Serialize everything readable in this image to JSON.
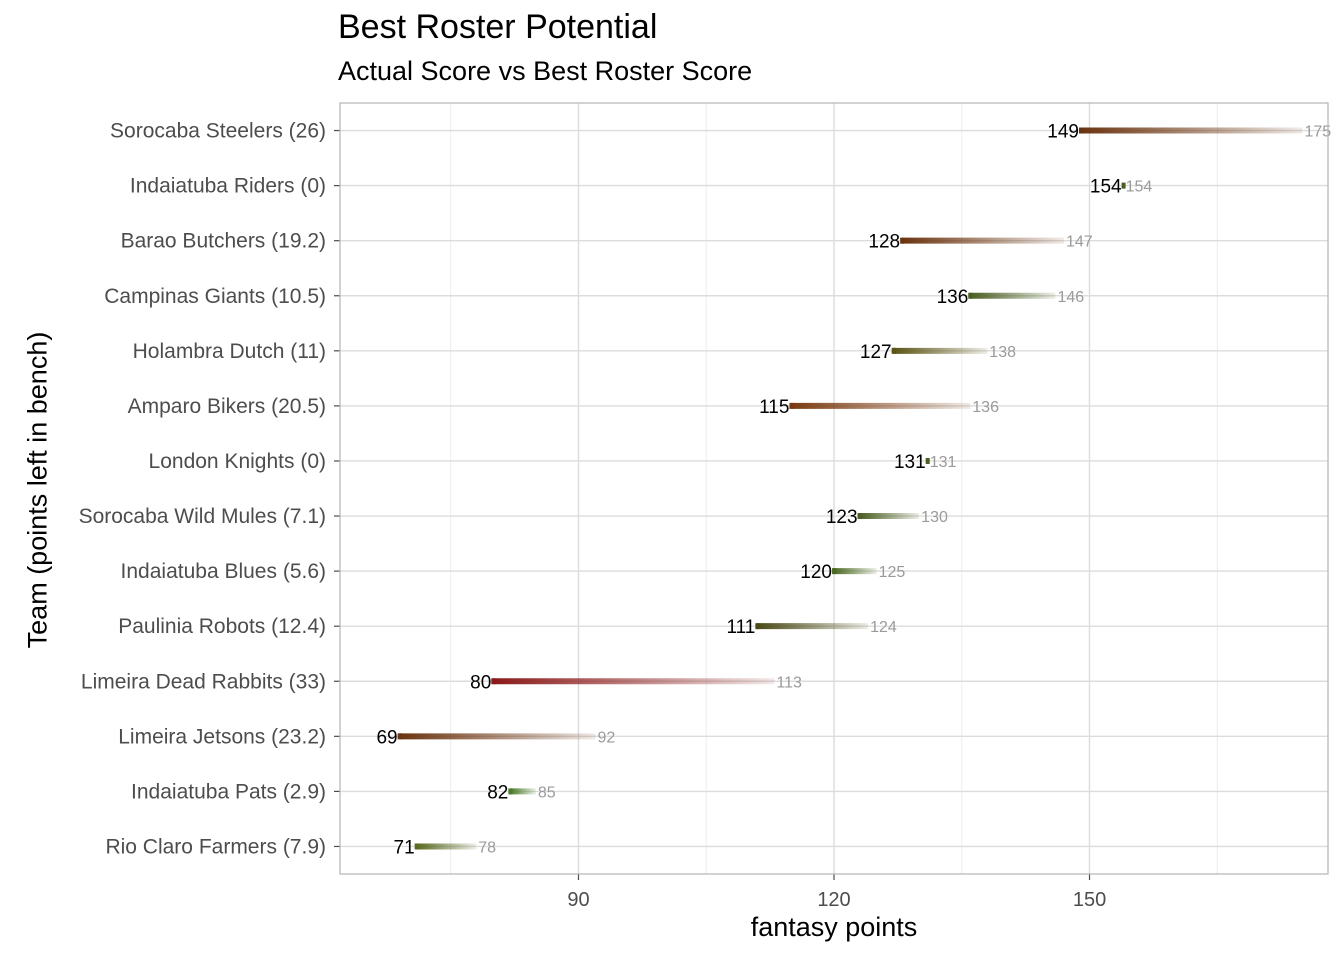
{
  "chart_data": {
    "type": "dumbbell",
    "title": "Best Roster Potential",
    "subtitle": "Actual Score vs Best Roster Score",
    "xlabel": "fantasy points",
    "ylabel": "Team (points left in bench)",
    "xlim": [
      62,
      178
    ],
    "xticks": [
      90,
      120,
      150
    ],
    "grid": true,
    "colors": {
      "actual_label": "#000000",
      "best_label": "#9a9a9a",
      "underperform_high": "#6b3410",
      "underperform_severe": "#8b1a1a",
      "underperform_mid": "#5c4a16",
      "good": "#4b5e22",
      "good_light": "#6a8a3a"
    },
    "teams": [
      {
        "label": "Sorocaba Steelers (26)",
        "actual": 149,
        "best": 175,
        "color": "#6b3410"
      },
      {
        "label": "Indaiatuba Riders (0)",
        "actual": 154,
        "best": 154,
        "color": "#4b5e22"
      },
      {
        "label": "Barao Butchers (19.2)",
        "actual": 128,
        "best": 147,
        "color": "#6b3410"
      },
      {
        "label": "Campinas Giants (10.5)",
        "actual": 136,
        "best": 146,
        "color": "#4b5e22"
      },
      {
        "label": "Holambra Dutch (11)",
        "actual": 127,
        "best": 138,
        "color": "#5c5416"
      },
      {
        "label": "Amparo Bikers (20.5)",
        "actual": 115,
        "best": 136,
        "color": "#7a3a10"
      },
      {
        "label": "London Knights (0)",
        "actual": 131,
        "best": 131,
        "color": "#4b5e22"
      },
      {
        "label": "Sorocaba Wild Mules (7.1)",
        "actual": 123,
        "best": 130,
        "color": "#4b5e22"
      },
      {
        "label": "Indaiatuba Blues (5.6)",
        "actual": 120,
        "best": 125,
        "color": "#4b6a22"
      },
      {
        "label": "Paulinia Robots (12.4)",
        "actual": 111,
        "best": 124,
        "color": "#4b4a16"
      },
      {
        "label": "Limeira Dead Rabbits (33)",
        "actual": 80,
        "best": 113,
        "color": "#8b1a1a"
      },
      {
        "label": "Limeira Jetsons (23.2)",
        "actual": 69,
        "best": 92,
        "color": "#6b3410"
      },
      {
        "label": "Indaiatuba Pats (2.9)",
        "actual": 82,
        "best": 85,
        "color": "#4b7a2a"
      },
      {
        "label": "Rio Claro Farmers (7.9)",
        "actual": 71,
        "best": 78,
        "color": "#5a6a22"
      }
    ]
  }
}
